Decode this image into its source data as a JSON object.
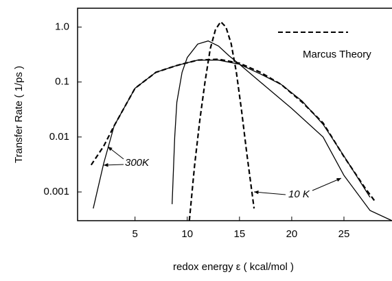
{
  "chart_data": {
    "type": "line",
    "y_label": "Transfer Rate ( 1/ps )",
    "x_label": "redox energy ε ( kcal/mol )",
    "xlim": [
      -0.5,
      29.6
    ],
    "ylim": [
      0.0003,
      2.2
    ],
    "log_y": true,
    "xticks": [
      5,
      10,
      15,
      20,
      25
    ],
    "yticks": [
      {
        "value": 1,
        "label": "1.0"
      },
      0.1,
      0.01,
      0.001
    ],
    "legend": {
      "label": "Marcus Theory",
      "style": "dashed"
    },
    "annotations": [
      "300K",
      "10 K"
    ],
    "series": [
      {
        "style": "solid",
        "color": "#000000",
        "x": [
          1,
          2,
          3,
          5,
          7,
          9,
          11,
          13,
          15,
          17,
          19,
          21,
          23,
          25,
          27.5
        ],
        "values": [
          0.0005,
          0.0033,
          0.016,
          0.077,
          0.15,
          0.2,
          0.25,
          0.25,
          0.21,
          0.14,
          0.09,
          0.045,
          0.017,
          0.0045,
          0.0008
        ]
      },
      {
        "style": "dashed",
        "color": "#000000",
        "x": [
          0.8,
          2,
          3,
          5,
          7,
          9,
          11,
          13,
          15,
          17,
          19,
          21,
          23,
          25,
          27,
          28
        ],
        "values": [
          0.0031,
          0.0068,
          0.016,
          0.077,
          0.15,
          0.2,
          0.25,
          0.26,
          0.22,
          0.15,
          0.09,
          0.043,
          0.018,
          0.0044,
          0.0012,
          0.00066
        ]
      },
      {
        "style": "solid",
        "color": "#000000",
        "x": [
          8.55,
          8.8,
          9,
          9.5,
          10,
          11,
          12,
          13,
          14,
          15,
          17,
          20,
          23,
          25,
          27.5,
          29.6
        ],
        "values": [
          0.0006,
          0.01,
          0.043,
          0.15,
          0.28,
          0.49,
          0.56,
          0.45,
          0.3,
          0.21,
          0.1,
          0.033,
          0.01,
          0.002,
          0.00046,
          0.0003
        ]
      },
      {
        "style": "dashed",
        "color": "#000000",
        "x": [
          10.2,
          10.7,
          11.2,
          11.7,
          12.2,
          12.7,
          13.2,
          13.7,
          14.2,
          14.7,
          15.2,
          15.7,
          16.4
        ],
        "values": [
          0.0003,
          0.003,
          0.02,
          0.1,
          0.4,
          0.9,
          1.25,
          1.0,
          0.5,
          0.15,
          0.03,
          0.005,
          0.0005
        ]
      }
    ]
  }
}
